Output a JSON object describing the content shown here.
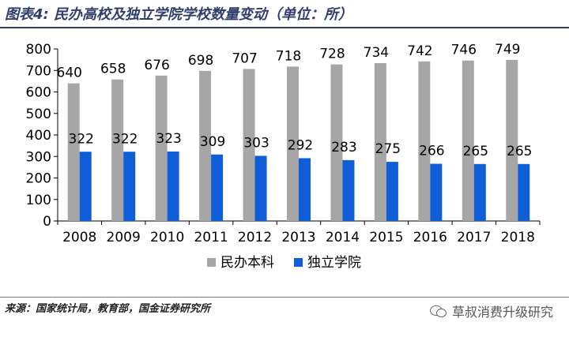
{
  "header": {
    "title": "图表4: 民办高校及独立学院学校数量变动（单位：所）"
  },
  "footer": {
    "source": "来源：国家统计局，教育部，国金证券研究所",
    "watermark": "草叔消费升级研究"
  },
  "icons": {
    "watermark": "wechat-icon"
  },
  "colors": {
    "series_1": "#a6a6a6",
    "series_2": "#0f5ed8",
    "title": "#2f3e6b"
  },
  "chart_data": {
    "type": "bar",
    "categories": [
      "2008",
      "2009",
      "2010",
      "2011",
      "2012",
      "2013",
      "2014",
      "2015",
      "2016",
      "2017",
      "2018"
    ],
    "series": [
      {
        "name": "民办本科",
        "values": [
          640,
          658,
          676,
          698,
          707,
          718,
          728,
          734,
          742,
          746,
          749
        ]
      },
      {
        "name": "独立学院",
        "values": [
          322,
          322,
          323,
          309,
          303,
          292,
          283,
          275,
          266,
          265,
          265
        ]
      }
    ],
    "ylim": [
      0,
      800
    ],
    "yticks": [
      0,
      100,
      200,
      300,
      400,
      500,
      600,
      700,
      800
    ],
    "grid": false,
    "legend": "bottom-center"
  }
}
